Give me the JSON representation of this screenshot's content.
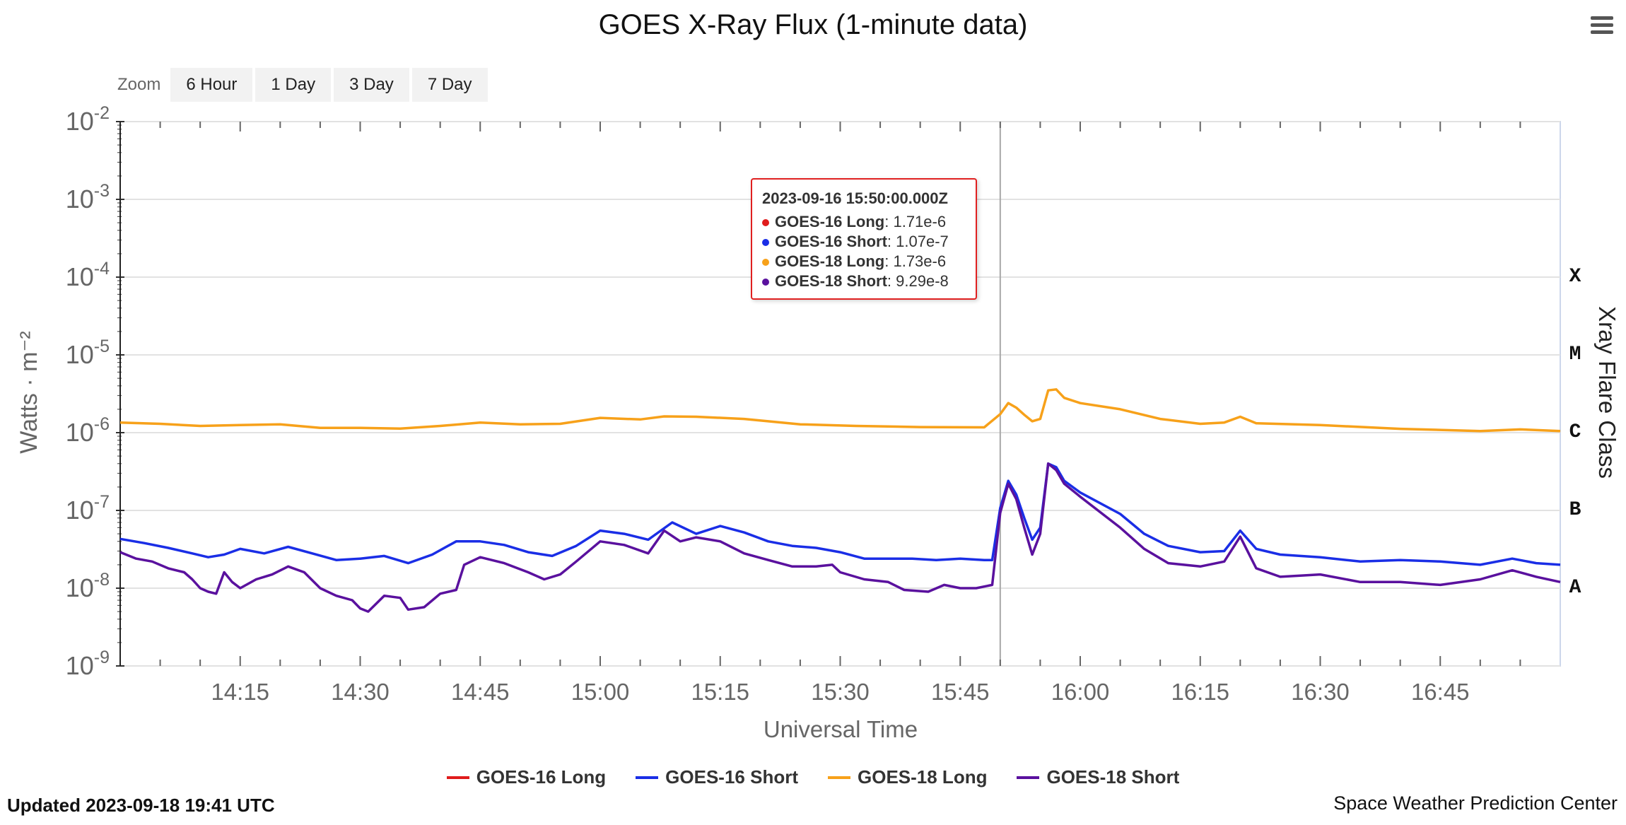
{
  "header": {
    "title": "GOES X-Ray Flux (1-minute data)",
    "menu_icon": "hamburger-menu-icon"
  },
  "zoom": {
    "label": "Zoom",
    "buttons": [
      "6 Hour",
      "1 Day",
      "3 Day",
      "7 Day"
    ]
  },
  "chart_data": {
    "type": "line",
    "title": "GOES X-Ray Flux (1-minute data)",
    "xlabel": "Universal Time",
    "ylabel": "Watts · m⁻²",
    "y2label": "Xray Flare Class",
    "yscale": "log",
    "ylim": [
      1e-09,
      0.01
    ],
    "xlim": [
      "2023-09-16 14:00",
      "2023-09-16 17:00"
    ],
    "grid": true,
    "legend_position": "bottom-center",
    "x_tick_labels": [
      "14:15",
      "14:30",
      "14:45",
      "15:00",
      "15:15",
      "15:30",
      "15:45",
      "16:00",
      "16:15",
      "16:30",
      "16:45"
    ],
    "y_tick_labels": [
      {
        "base": "10",
        "exp": "-2"
      },
      {
        "base": "10",
        "exp": "-3"
      },
      {
        "base": "10",
        "exp": "-4"
      },
      {
        "base": "10",
        "exp": "-5"
      },
      {
        "base": "10",
        "exp": "-6"
      },
      {
        "base": "10",
        "exp": "-7"
      },
      {
        "base": "10",
        "exp": "-8"
      },
      {
        "base": "10",
        "exp": "-9"
      }
    ],
    "flare_classes": [
      {
        "label": "X",
        "level": 0.0001
      },
      {
        "label": "M",
        "level": 1e-05
      },
      {
        "label": "C",
        "level": 1e-06
      },
      {
        "label": "B",
        "level": 1e-07
      },
      {
        "label": "A",
        "level": 1e-08
      }
    ],
    "crosshair_time": "15:50",
    "series": [
      {
        "name": "GOES-18 Long",
        "color": "#f7a11a",
        "points": [
          [
            "14:00",
            1.35e-06
          ],
          [
            "14:05",
            1.3e-06
          ],
          [
            "14:10",
            1.22e-06
          ],
          [
            "14:15",
            1.25e-06
          ],
          [
            "14:20",
            1.28e-06
          ],
          [
            "14:25",
            1.15e-06
          ],
          [
            "14:30",
            1.15e-06
          ],
          [
            "14:35",
            1.13e-06
          ],
          [
            "14:40",
            1.22e-06
          ],
          [
            "14:45",
            1.35e-06
          ],
          [
            "14:50",
            1.28e-06
          ],
          [
            "14:55",
            1.3e-06
          ],
          [
            "15:00",
            1.55e-06
          ],
          [
            "15:05",
            1.48e-06
          ],
          [
            "15:08",
            1.62e-06
          ],
          [
            "15:12",
            1.6e-06
          ],
          [
            "15:18",
            1.5e-06
          ],
          [
            "15:25",
            1.28e-06
          ],
          [
            "15:32",
            1.22e-06
          ],
          [
            "15:40",
            1.18e-06
          ],
          [
            "15:48",
            1.17e-06
          ],
          [
            "15:50",
            1.73e-06
          ],
          [
            "15:51",
            2.4e-06
          ],
          [
            "15:52",
            2.1e-06
          ],
          [
            "15:53",
            1.7e-06
          ],
          [
            "15:54",
            1.4e-06
          ],
          [
            "15:55",
            1.5e-06
          ],
          [
            "15:56",
            3.5e-06
          ],
          [
            "15:57",
            3.6e-06
          ],
          [
            "15:58",
            2.8e-06
          ],
          [
            "16:00",
            2.4e-06
          ],
          [
            "16:05",
            2e-06
          ],
          [
            "16:10",
            1.5e-06
          ],
          [
            "16:15",
            1.3e-06
          ],
          [
            "16:18",
            1.35e-06
          ],
          [
            "16:20",
            1.6e-06
          ],
          [
            "16:22",
            1.32e-06
          ],
          [
            "16:30",
            1.25e-06
          ],
          [
            "16:40",
            1.12e-06
          ],
          [
            "16:50",
            1.05e-06
          ],
          [
            "16:55",
            1.1e-06
          ],
          [
            "17:00",
            1.05e-06
          ]
        ]
      },
      {
        "name": "GOES-16 Long",
        "color": "#e01c1c",
        "points": []
      },
      {
        "name": "GOES-16 Short",
        "color": "#1a2ee6",
        "points": [
          [
            "14:00",
            4.3e-08
          ],
          [
            "14:03",
            3.8e-08
          ],
          [
            "14:06",
            3.3e-08
          ],
          [
            "14:09",
            2.8e-08
          ],
          [
            "14:11",
            2.5e-08
          ],
          [
            "14:13",
            2.7e-08
          ],
          [
            "14:15",
            3.2e-08
          ],
          [
            "14:18",
            2.8e-08
          ],
          [
            "14:21",
            3.4e-08
          ],
          [
            "14:24",
            2.8e-08
          ],
          [
            "14:27",
            2.3e-08
          ],
          [
            "14:30",
            2.4e-08
          ],
          [
            "14:33",
            2.6e-08
          ],
          [
            "14:36",
            2.1e-08
          ],
          [
            "14:39",
            2.7e-08
          ],
          [
            "14:42",
            4e-08
          ],
          [
            "14:45",
            4e-08
          ],
          [
            "14:48",
            3.6e-08
          ],
          [
            "14:51",
            2.9e-08
          ],
          [
            "14:54",
            2.6e-08
          ],
          [
            "14:57",
            3.5e-08
          ],
          [
            "15:00",
            5.5e-08
          ],
          [
            "15:03",
            5e-08
          ],
          [
            "15:06",
            4.2e-08
          ],
          [
            "15:09",
            7e-08
          ],
          [
            "15:12",
            5e-08
          ],
          [
            "15:15",
            6.3e-08
          ],
          [
            "15:18",
            5.2e-08
          ],
          [
            "15:21",
            4e-08
          ],
          [
            "15:24",
            3.5e-08
          ],
          [
            "15:27",
            3.3e-08
          ],
          [
            "15:30",
            2.9e-08
          ],
          [
            "15:33",
            2.4e-08
          ],
          [
            "15:36",
            2.4e-08
          ],
          [
            "15:39",
            2.4e-08
          ],
          [
            "15:42",
            2.3e-08
          ],
          [
            "15:45",
            2.4e-08
          ],
          [
            "15:48",
            2.3e-08
          ],
          [
            "15:49",
            2.3e-08
          ],
          [
            "15:50",
            1.07e-07
          ],
          [
            "15:51",
            2.4e-07
          ],
          [
            "15:52",
            1.6e-07
          ],
          [
            "15:53",
            8e-08
          ],
          [
            "15:54",
            4.2e-08
          ],
          [
            "15:55",
            6e-08
          ],
          [
            "15:56",
            4e-07
          ],
          [
            "15:57",
            3.6e-07
          ],
          [
            "15:58",
            2.4e-07
          ],
          [
            "16:00",
            1.7e-07
          ],
          [
            "16:05",
            9e-08
          ],
          [
            "16:08",
            5e-08
          ],
          [
            "16:11",
            3.5e-08
          ],
          [
            "16:15",
            2.9e-08
          ],
          [
            "16:18",
            3e-08
          ],
          [
            "16:20",
            5.5e-08
          ],
          [
            "16:22",
            3.2e-08
          ],
          [
            "16:25",
            2.7e-08
          ],
          [
            "16:30",
            2.5e-08
          ],
          [
            "16:35",
            2.2e-08
          ],
          [
            "16:40",
            2.3e-08
          ],
          [
            "16:45",
            2.2e-08
          ],
          [
            "16:50",
            2e-08
          ],
          [
            "16:54",
            2.4e-08
          ],
          [
            "16:57",
            2.1e-08
          ],
          [
            "17:00",
            2e-08
          ]
        ]
      },
      {
        "name": "GOES-18 Short",
        "color": "#5a119e",
        "points": [
          [
            "14:00",
            2.9e-08
          ],
          [
            "14:02",
            2.4e-08
          ],
          [
            "14:04",
            2.2e-08
          ],
          [
            "14:06",
            1.8e-08
          ],
          [
            "14:08",
            1.6e-08
          ],
          [
            "14:09",
            1.3e-08
          ],
          [
            "14:10",
            1e-08
          ],
          [
            "14:11",
            9e-09
          ],
          [
            "14:12",
            8.5e-09
          ],
          [
            "14:13",
            1.6e-08
          ],
          [
            "14:14",
            1.2e-08
          ],
          [
            "14:15",
            1e-08
          ],
          [
            "14:17",
            1.3e-08
          ],
          [
            "14:19",
            1.5e-08
          ],
          [
            "14:21",
            1.9e-08
          ],
          [
            "14:23",
            1.6e-08
          ],
          [
            "14:25",
            1e-08
          ],
          [
            "14:27",
            8e-09
          ],
          [
            "14:29",
            7e-09
          ],
          [
            "14:30",
            5.5e-09
          ],
          [
            "14:31",
            5e-09
          ],
          [
            "14:33",
            8e-09
          ],
          [
            "14:35",
            7.5e-09
          ],
          [
            "14:36",
            5.3e-09
          ],
          [
            "14:38",
            5.7e-09
          ],
          [
            "14:40",
            8.5e-09
          ],
          [
            "14:42",
            9.5e-09
          ],
          [
            "14:43",
            2e-08
          ],
          [
            "14:45",
            2.5e-08
          ],
          [
            "14:48",
            2.1e-08
          ],
          [
            "14:51",
            1.6e-08
          ],
          [
            "14:53",
            1.3e-08
          ],
          [
            "14:55",
            1.5e-08
          ],
          [
            "14:57",
            2.2e-08
          ],
          [
            "15:00",
            4e-08
          ],
          [
            "15:03",
            3.6e-08
          ],
          [
            "15:06",
            2.8e-08
          ],
          [
            "15:08",
            5.5e-08
          ],
          [
            "15:10",
            4e-08
          ],
          [
            "15:12",
            4.5e-08
          ],
          [
            "15:15",
            4e-08
          ],
          [
            "15:18",
            2.8e-08
          ],
          [
            "15:21",
            2.3e-08
          ],
          [
            "15:24",
            1.9e-08
          ],
          [
            "15:27",
            1.9e-08
          ],
          [
            "15:29",
            2e-08
          ],
          [
            "15:30",
            1.6e-08
          ],
          [
            "15:33",
            1.3e-08
          ],
          [
            "15:36",
            1.2e-08
          ],
          [
            "15:38",
            9.5e-09
          ],
          [
            "15:41",
            9e-09
          ],
          [
            "15:43",
            1.1e-08
          ],
          [
            "15:45",
            1e-08
          ],
          [
            "15:47",
            1e-08
          ],
          [
            "15:49",
            1.1e-08
          ],
          [
            "15:50",
            9.29e-08
          ],
          [
            "15:51",
            2.2e-07
          ],
          [
            "15:52",
            1.4e-07
          ],
          [
            "15:53",
            6e-08
          ],
          [
            "15:54",
            2.7e-08
          ],
          [
            "15:55",
            5e-08
          ],
          [
            "15:56",
            4e-07
          ],
          [
            "15:57",
            3.3e-07
          ],
          [
            "15:58",
            2.2e-07
          ],
          [
            "16:00",
            1.5e-07
          ],
          [
            "16:05",
            6e-08
          ],
          [
            "16:08",
            3.2e-08
          ],
          [
            "16:11",
            2.1e-08
          ],
          [
            "16:15",
            1.9e-08
          ],
          [
            "16:18",
            2.2e-08
          ],
          [
            "16:20",
            4.6e-08
          ],
          [
            "16:22",
            1.8e-08
          ],
          [
            "16:25",
            1.4e-08
          ],
          [
            "16:30",
            1.5e-08
          ],
          [
            "16:35",
            1.2e-08
          ],
          [
            "16:40",
            1.2e-08
          ],
          [
            "16:45",
            1.1e-08
          ],
          [
            "16:50",
            1.3e-08
          ],
          [
            "16:54",
            1.7e-08
          ],
          [
            "16:57",
            1.4e-08
          ],
          [
            "17:00",
            1.2e-08
          ]
        ]
      }
    ]
  },
  "tooltip": {
    "time": "2023-09-16 15:50:00.000Z",
    "rows": [
      {
        "series": "GOES-16 Long",
        "value": ": 1.71e-6",
        "color": "#e01c1c"
      },
      {
        "series": "GOES-16 Short",
        "value": ": 1.07e-7",
        "color": "#1a2ee6"
      },
      {
        "series": "GOES-18 Long",
        "value": ": 1.73e-6",
        "color": "#f7a11a"
      },
      {
        "series": "GOES-18 Short",
        "value": ": 9.29e-8",
        "color": "#5a119e"
      }
    ]
  },
  "legend": [
    {
      "label": "GOES-16 Long",
      "color": "#e01c1c"
    },
    {
      "label": "GOES-16 Short",
      "color": "#1a2ee6"
    },
    {
      "label": "GOES-18 Long",
      "color": "#f7a11a"
    },
    {
      "label": "GOES-18 Short",
      "color": "#5a119e"
    }
  ],
  "footer": {
    "updated": "Updated 2023-09-18 19:41 UTC",
    "credit": "Space Weather Prediction Center"
  }
}
